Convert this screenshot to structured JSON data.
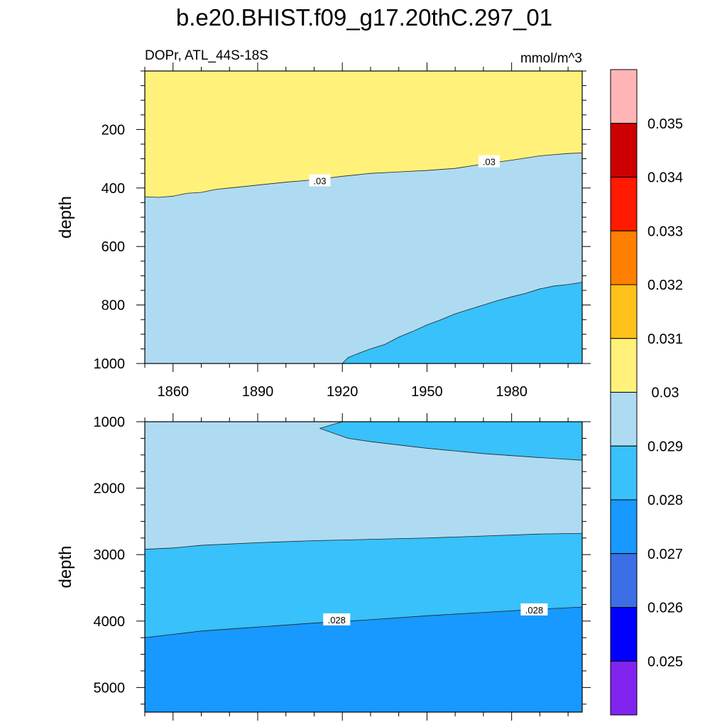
{
  "chart_data": {
    "type": "contour",
    "title": "b.e20.BHIST.f09_g17.20thC.297_01",
    "subtitle_left": "DOPr, ATL_44S-18S",
    "subtitle_right": "mmol/m^3",
    "x_tick_labels": [
      "1860",
      "1890",
      "1920",
      "1950",
      "1980"
    ],
    "xlim": [
      1850,
      2005
    ],
    "colorbar": {
      "levels": [
        "0.025",
        "0.026",
        "0.027",
        "0.028",
        "0.029",
        "0.03",
        "0.031",
        "0.032",
        "0.033",
        "0.034",
        "0.035"
      ],
      "colors": [
        "#8224f0",
        "#0000ff",
        "#3c6ee6",
        "#1799ff",
        "#38c1fa",
        "#aedbf2",
        "#fff17a",
        "#ffc11a",
        "#ff7f00",
        "#ff1a00",
        "#cc0000",
        "#ffb5b5"
      ]
    },
    "panels": [
      {
        "id": "upper",
        "ylabel": "depth",
        "ylim": [
          0,
          1000
        ],
        "y_ticks": [
          200,
          400,
          600,
          800,
          1000
        ],
        "y_tick_labels": [
          "200",
          "400",
          "600",
          "800",
          "1000"
        ],
        "background_color": "#aedbf2",
        "regions": [
          {
            "color": "#fff17a",
            "boundary_top": true,
            "points": [
              [
                1850,
                430
              ],
              [
                1855,
                432
              ],
              [
                1860,
                428
              ],
              [
                1865,
                418
              ],
              [
                1870,
                415
              ],
              [
                1875,
                405
              ],
              [
                1880,
                400
              ],
              [
                1890,
                390
              ],
              [
                1900,
                380
              ],
              [
                1910,
                372
              ],
              [
                1920,
                360
              ],
              [
                1930,
                350
              ],
              [
                1940,
                345
              ],
              [
                1950,
                340
              ],
              [
                1960,
                333
              ],
              [
                1970,
                318
              ],
              [
                1980,
                305
              ],
              [
                1990,
                290
              ],
              [
                2000,
                282
              ],
              [
                2005,
                280
              ]
            ]
          },
          {
            "color": "#38c1fa",
            "boundary_top": false,
            "points": [
              [
                1920,
                1000
              ],
              [
                1922,
                980
              ],
              [
                1925,
                968
              ],
              [
                1930,
                950
              ],
              [
                1935,
                935
              ],
              [
                1940,
                910
              ],
              [
                1945,
                890
              ],
              [
                1950,
                868
              ],
              [
                1955,
                850
              ],
              [
                1960,
                830
              ],
              [
                1965,
                815
              ],
              [
                1970,
                800
              ],
              [
                1975,
                785
              ],
              [
                1980,
                772
              ],
              [
                1985,
                760
              ],
              [
                1990,
                745
              ],
              [
                1995,
                735
              ],
              [
                2000,
                730
              ],
              [
                2005,
                722
              ]
            ]
          }
        ],
        "contour_labels": [
          {
            "text": ".03",
            "x": 1912,
            "y": 375
          },
          {
            "text": ".03",
            "x": 1972,
            "y": 310
          }
        ]
      },
      {
        "id": "lower",
        "ylabel": "depth",
        "ylim": [
          1000,
          5370
        ],
        "y_ticks": [
          1000,
          2000,
          3000,
          4000,
          5000
        ],
        "y_tick_labels": [
          "1000",
          "2000",
          "3000",
          "4000",
          "5000"
        ],
        "background_color": "#1799ff",
        "regions": [
          {
            "color": "#38c1fa",
            "boundary_top": true,
            "points": [
              [
                1850,
                4250
              ],
              [
                1860,
                4200
              ],
              [
                1870,
                4150
              ],
              [
                1890,
                4090
              ],
              [
                1910,
                4030
              ],
              [
                1930,
                3980
              ],
              [
                1950,
                3920
              ],
              [
                1970,
                3870
              ],
              [
                1990,
                3820
              ],
              [
                2005,
                3790
              ]
            ]
          },
          {
            "color": "#aedbf2",
            "boundary_top": true,
            "points": [
              [
                1850,
                2920
              ],
              [
                1860,
                2900
              ],
              [
                1870,
                2860
              ],
              [
                1890,
                2820
              ],
              [
                1910,
                2790
              ],
              [
                1930,
                2770
              ],
              [
                1950,
                2750
              ],
              [
                1970,
                2720
              ],
              [
                1990,
                2690
              ],
              [
                2005,
                2680
              ]
            ]
          },
          {
            "color": "#38c1fa",
            "boundary_top": "closed",
            "points": [
              [
                1912,
                1100
              ],
              [
                1920,
                1000
              ],
              [
                2005,
                1000
              ],
              [
                2005,
                1580
              ],
              [
                1990,
                1540
              ],
              [
                1970,
                1480
              ],
              [
                1950,
                1400
              ],
              [
                1930,
                1300
              ],
              [
                1922,
                1250
              ],
              [
                1912,
                1100
              ]
            ]
          }
        ],
        "contour_labels": [
          {
            "text": ".028",
            "x": 1918,
            "y": 3980
          },
          {
            "text": ".028",
            "x": 1988,
            "y": 3830
          }
        ]
      }
    ]
  }
}
